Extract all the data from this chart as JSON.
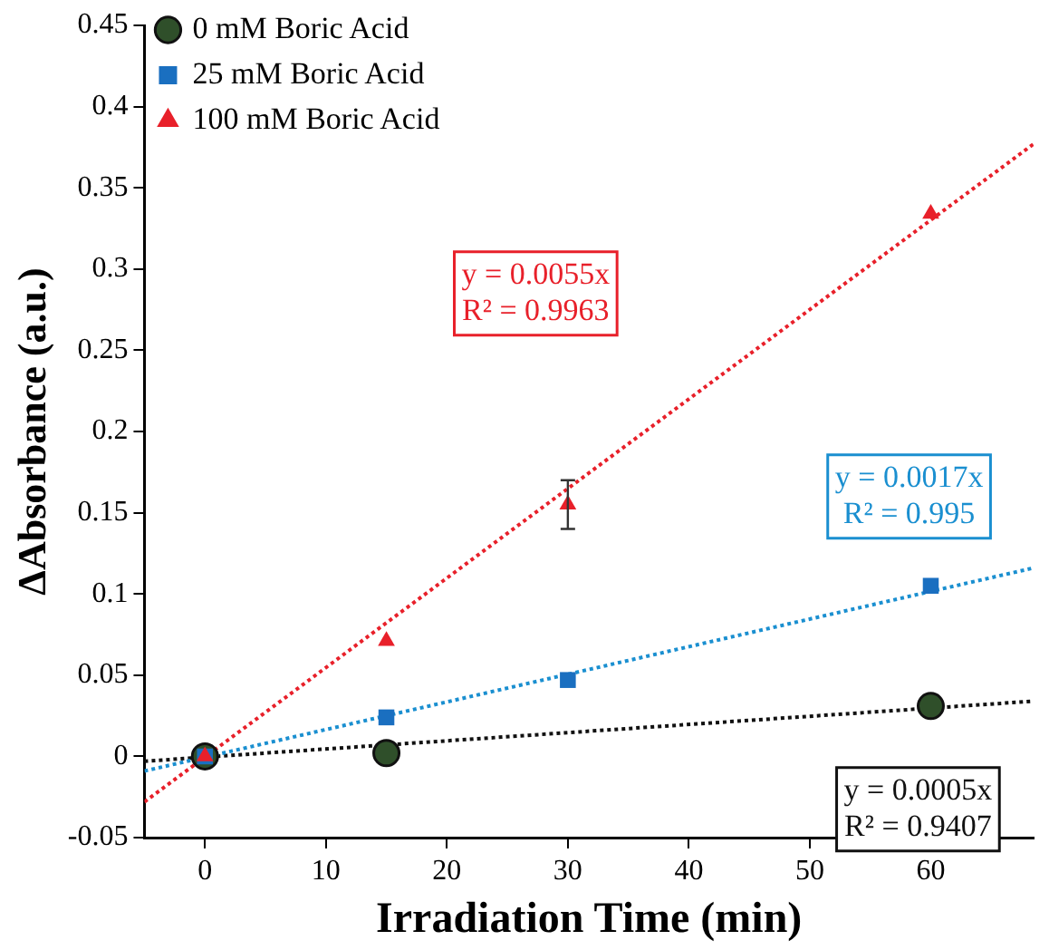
{
  "chart_data": {
    "type": "scatter",
    "xlabel": "Irradiation Time (min)",
    "ylabel": "ΔAbsorbance (a.u.)",
    "xlim": [
      -5,
      68.5
    ],
    "xticks": [
      0,
      10,
      20,
      30,
      40,
      50,
      60
    ],
    "ylim": [
      -0.05,
      0.45
    ],
    "yticks": [
      -0.05,
      0,
      0.05,
      0.1,
      0.15,
      0.2,
      0.25,
      0.3,
      0.35,
      0.4,
      0.45
    ],
    "grid": false,
    "legend": "top left",
    "series": [
      {
        "name": "0 mM Boric Acid",
        "color": "#2f4f2a",
        "marker": "circle",
        "x": [
          0,
          15,
          60
        ],
        "values": [
          0,
          0.002,
          0.031
        ]
      },
      {
        "name": "25 mM Boric Acid",
        "color": "#1a6fc0",
        "marker": "square",
        "x": [
          0,
          15,
          30,
          60
        ],
        "values": [
          0,
          0.024,
          0.047,
          0.105
        ]
      },
      {
        "name": "100 mM Boric Acid",
        "color": "#e8202a",
        "marker": "triangle",
        "x": [
          0,
          15,
          30,
          60
        ],
        "values": [
          0,
          0.071,
          0.155,
          0.334
        ],
        "errors": [
          null,
          null,
          0.015,
          null
        ]
      },
      {
        "type": "line",
        "color": "#e8202a",
        "line_style": "dotted",
        "marker": "none",
        "x": [
          -5,
          68.5
        ],
        "values": [
          -0.028,
          0.377
        ]
      },
      {
        "type": "line",
        "color": "#1a8fd0",
        "line_style": "dotted",
        "marker": "none",
        "x": [
          -5,
          68.5
        ],
        "values": [
          -0.009,
          0.116
        ]
      },
      {
        "type": "line",
        "color": "#111111",
        "line_style": "dotted",
        "marker": "none",
        "x": [
          -5,
          68.5
        ],
        "values": [
          -0.003,
          0.034
        ]
      }
    ],
    "annotations": [
      "y = 0.0055x\nR² = 0.9963",
      "y = 0.0017x\nR² = 0.995",
      "y = 0.0005x\nR² = 0.9407"
    ]
  }
}
